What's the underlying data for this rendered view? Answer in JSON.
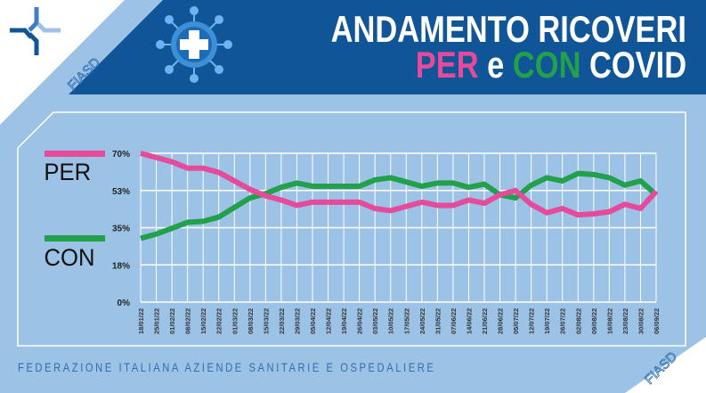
{
  "header": {
    "title_line1": "ANDAMENTO RICOVERI",
    "title_line2": {
      "per": "PER",
      "e": "e",
      "con": "CON",
      "covid": "COVID"
    },
    "logo_text": "FIASD"
  },
  "footer": {
    "text": "FEDERAZIONE ITALIANA AZIENDE SANITARIE E OSPEDALIERE",
    "logo_text": "FIASD"
  },
  "colors": {
    "header_blue": "#0f5597",
    "background_blue": "#9cc2e6",
    "per": "#e64a9b",
    "con": "#22a04a"
  },
  "chart_data": {
    "type": "line",
    "ylim": [
      0,
      70
    ],
    "yticks": [
      "0%",
      "18%",
      "35%",
      "53%",
      "70%"
    ],
    "ytick_values": [
      0,
      17.5,
      35,
      52.5,
      70
    ],
    "grid": true,
    "legend_placement": "left",
    "x": [
      "18/01/22",
      "25/01/22",
      "01/02/22",
      "08/02/22",
      "15/02/22",
      "22/02/22",
      "01/03/22",
      "08/03/22",
      "15/03/22",
      "22/03/22",
      "29/03/22",
      "05/04/22",
      "12/04/22",
      "19/04/22",
      "26/04/22",
      "03/05/22",
      "10/05/22",
      "17/05/22",
      "24/05/22",
      "31/05/22",
      "07/06/22",
      "14/06/22",
      "21/06/22",
      "28/06/22",
      "05/07/22",
      "12/07/22",
      "19/07/22",
      "26/07/22",
      "02/08/22",
      "09/08/22",
      "16/08/22",
      "23/08/22",
      "30/08/22",
      "06/09/22"
    ],
    "series": [
      {
        "name": "PER",
        "color": "#e64a9b",
        "values": [
          70,
          68,
          66,
          63,
          63,
          61,
          57,
          53,
          50,
          48,
          45.5,
          47,
          47,
          47,
          47,
          44,
          43,
          45,
          47,
          45.5,
          45.5,
          48,
          46.5,
          50.5,
          52.5,
          46,
          42,
          44,
          41,
          41.5,
          42.5,
          46,
          44,
          52
        ]
      },
      {
        "name": "CON",
        "color": "#22a04a",
        "values": [
          30,
          32,
          34.7,
          37.5,
          38,
          40,
          44.5,
          49,
          51,
          54,
          56,
          54.5,
          54.5,
          54.5,
          54.5,
          57.5,
          58.5,
          56.5,
          54.5,
          56,
          56,
          54,
          55.5,
          50.5,
          49,
          55,
          58.5,
          57,
          60.5,
          60,
          58.5,
          55,
          57,
          50.5
        ]
      }
    ]
  }
}
